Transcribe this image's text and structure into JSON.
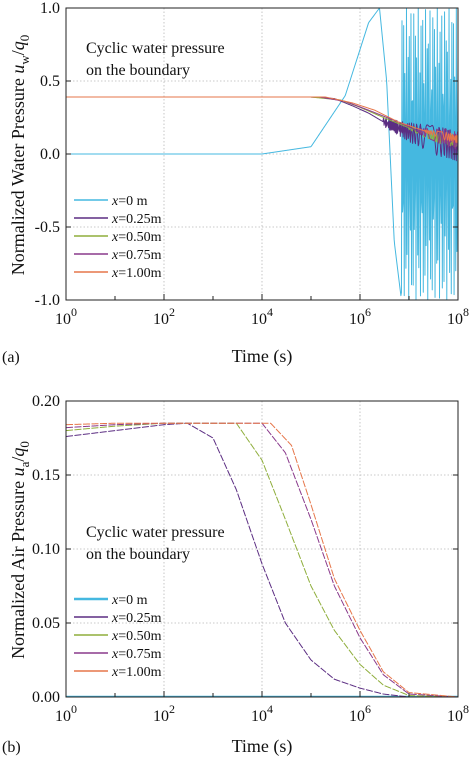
{
  "colors": {
    "x0": "#45b8e0",
    "x025": "#5b2d82",
    "x050": "#8fae3c",
    "x075": "#8a3a8c",
    "x100": "#e6764a",
    "grid": "#b9b9b9",
    "axis": "#222222"
  },
  "chart_data": [
    {
      "panel": "(a)",
      "type": "line",
      "xscale": "log",
      "xlim": [
        1,
        100000000
      ],
      "ylim": [
        -1.0,
        1.0
      ],
      "grid": true,
      "xlabel": "Time (s)",
      "ylabel": "Normalized Water Pressure u_w/q_0",
      "ylabel_parts": {
        "main": "Normalized Water Pressure ",
        "u": "u",
        "u_sub": "w",
        "slash": "/",
        "q": "q",
        "q_sub": "0"
      },
      "xtick_labels": [
        {
          "base": "10",
          "exp": "0"
        },
        {
          "base": "10",
          "exp": "2"
        },
        {
          "base": "10",
          "exp": "4"
        },
        {
          "base": "10",
          "exp": "6"
        },
        {
          "base": "10",
          "exp": "8"
        }
      ],
      "ytick_labels": [
        "1.0",
        "0.5",
        "0.0",
        "-0.5",
        "-1.0"
      ],
      "annotation": [
        "Cyclic water pressure",
        "on the  boundary"
      ],
      "legend_position": "lower-left",
      "series": [
        {
          "name": "x=0 m",
          "name_var": "x",
          "name_rest": "=0 m",
          "points": [
            [
              1,
              0.0
            ],
            [
              10000,
              0.0
            ],
            [
              100000,
              0.05
            ],
            [
              500000,
              0.4
            ],
            [
              1500000,
              0.9
            ],
            [
              2500000,
              1.0
            ],
            [
              3500000,
              0.5
            ],
            [
              5000000,
              -0.6
            ],
            [
              7000000,
              -1.0
            ]
          ],
          "oscillation": {
            "start": 7000000,
            "amplitude": 1.0,
            "behavior": "fills -1 to 1 to end"
          }
        },
        {
          "name": "x=0.25m",
          "name_var": "x",
          "name_rest": "=0.25m",
          "points": [
            [
              1,
              0.39
            ],
            [
              100000,
              0.39
            ],
            [
              300000,
              0.38
            ],
            [
              700000,
              0.33
            ],
            [
              1500000,
              0.28
            ],
            [
              3000000,
              0.22
            ],
            [
              10000000,
              0.15
            ],
            [
              30000000,
              0.1
            ],
            [
              100000000,
              0.05
            ]
          ],
          "oscillation": {
            "start": 3000000,
            "amplitude": 0.1,
            "behavior": "widening band"
          }
        },
        {
          "name": "x=0.50m",
          "name_var": "x",
          "name_rest": "=0.50m",
          "points": [
            [
              1,
              0.39
            ],
            [
              100000,
              0.39
            ],
            [
              400000,
              0.37
            ],
            [
              1000000,
              0.32
            ],
            [
              3000000,
              0.25
            ],
            [
              10000000,
              0.18
            ],
            [
              30000000,
              0.12
            ],
            [
              100000000,
              0.08
            ]
          ],
          "oscillation": {
            "start": 10000000,
            "amplitude": 0.04,
            "behavior": "narrow band"
          }
        },
        {
          "name": "x=0.75m",
          "name_var": "x",
          "name_rest": "=0.75m",
          "points": [
            [
              1,
              0.39
            ],
            [
              150000,
              0.39
            ],
            [
              500000,
              0.36
            ],
            [
              1500000,
              0.3
            ],
            [
              5000000,
              0.23
            ],
            [
              15000000,
              0.16
            ],
            [
              100000000,
              0.09
            ]
          ],
          "oscillation": {
            "start": 15000000,
            "amplitude": 0.06,
            "behavior": "band"
          }
        },
        {
          "name": "x=1.00m",
          "name_var": "x",
          "name_rest": "=1.00m",
          "points": [
            [
              1,
              0.39
            ],
            [
              200000,
              0.39
            ],
            [
              700000,
              0.35
            ],
            [
              2000000,
              0.3
            ],
            [
              6000000,
              0.22
            ],
            [
              20000000,
              0.16
            ],
            [
              100000000,
              0.1
            ]
          ],
          "oscillation": {
            "start": 20000000,
            "amplitude": 0.03,
            "behavior": "band"
          }
        }
      ]
    },
    {
      "panel": "(b)",
      "type": "line",
      "xscale": "log",
      "xlim": [
        1,
        100000000
      ],
      "ylim": [
        0.0,
        0.2
      ],
      "grid": true,
      "xlabel": "Time (s)",
      "ylabel": "Normalized Air Pressure u_a/q_0",
      "ylabel_parts": {
        "main": "Normalized Air Pressure ",
        "u": "u",
        "u_sub": "a",
        "slash": "/",
        "q": "q",
        "q_sub": "0"
      },
      "xtick_labels": [
        {
          "base": "10",
          "exp": "0"
        },
        {
          "base": "10",
          "exp": "2"
        },
        {
          "base": "10",
          "exp": "4"
        },
        {
          "base": "10",
          "exp": "6"
        },
        {
          "base": "10",
          "exp": "8"
        }
      ],
      "ytick_labels": [
        "0.20",
        "0.15",
        "0.10",
        "0.05",
        "0.00"
      ],
      "annotation": [
        "Cyclic water pressure",
        "on the  boundary"
      ],
      "legend_position": "lower-left",
      "series": [
        {
          "name": "x=0 m",
          "name_var": "x",
          "name_rest": "=0 m",
          "points": [
            [
              1,
              0.0
            ],
            [
              100000000,
              0.0
            ]
          ]
        },
        {
          "name": "x=0.25m",
          "name_var": "x",
          "name_rest": "=0.25m",
          "points": [
            [
              1,
              0.176
            ],
            [
              10,
              0.18
            ],
            [
              100,
              0.184
            ],
            [
              300,
              0.185
            ],
            [
              1000,
              0.175
            ],
            [
              3000,
              0.14
            ],
            [
              10000,
              0.09
            ],
            [
              30000,
              0.05
            ],
            [
              100000,
              0.025
            ],
            [
              300000,
              0.012
            ],
            [
              1000000,
              0.006
            ],
            [
              3000000,
              0.002
            ],
            [
              10000000,
              0.0
            ],
            [
              100000000,
              0.0
            ]
          ]
        },
        {
          "name": "x=0.50m",
          "name_var": "x",
          "name_rest": "=0.50m",
          "points": [
            [
              1,
              0.18
            ],
            [
              10,
              0.183
            ],
            [
              100,
              0.185
            ],
            [
              3000,
              0.185
            ],
            [
              10000,
              0.16
            ],
            [
              30000,
              0.12
            ],
            [
              100000,
              0.075
            ],
            [
              300000,
              0.045
            ],
            [
              1000000,
              0.022
            ],
            [
              3000000,
              0.008
            ],
            [
              10000000,
              0.001
            ],
            [
              100000000,
              0.0
            ]
          ]
        },
        {
          "name": "x=0.75m",
          "name_var": "x",
          "name_rest": "=0.75m",
          "points": [
            [
              1,
              0.182
            ],
            [
              10,
              0.184
            ],
            [
              100,
              0.185
            ],
            [
              10000,
              0.185
            ],
            [
              30000,
              0.165
            ],
            [
              100000,
              0.12
            ],
            [
              300000,
              0.075
            ],
            [
              1000000,
              0.04
            ],
            [
              3000000,
              0.015
            ],
            [
              10000000,
              0.002
            ],
            [
              100000000,
              0.0
            ]
          ]
        },
        {
          "name": "x=1.00m",
          "name_var": "x",
          "name_rest": "=1.00m",
          "points": [
            [
              1,
              0.184
            ],
            [
              10,
              0.185
            ],
            [
              15000,
              0.185
            ],
            [
              40000,
              0.17
            ],
            [
              100000,
              0.13
            ],
            [
              300000,
              0.08
            ],
            [
              1000000,
              0.045
            ],
            [
              3000000,
              0.017
            ],
            [
              10000000,
              0.003
            ],
            [
              100000000,
              0.0
            ]
          ]
        }
      ]
    }
  ]
}
